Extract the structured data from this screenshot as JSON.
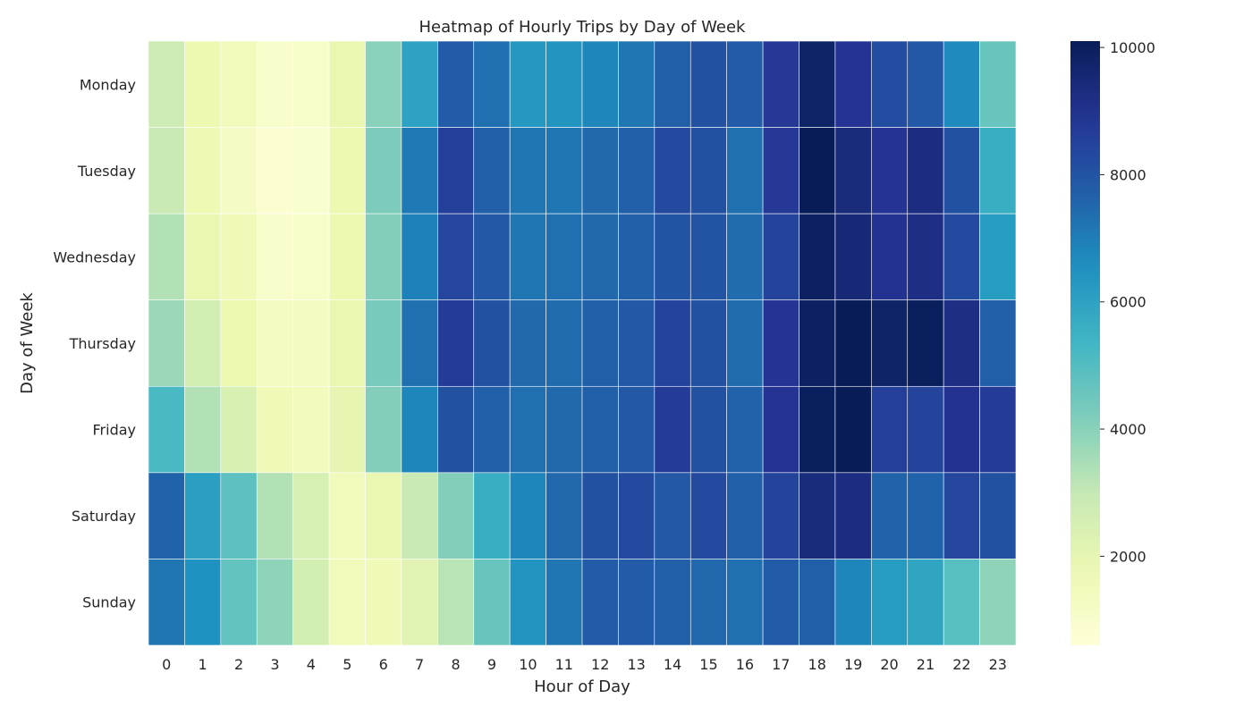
{
  "chart_data": {
    "type": "heatmap",
    "title": "Heatmap of Hourly Trips by Day of Week",
    "xlabel": "Hour of Day",
    "ylabel": "Day of Week",
    "x_categories": [
      "0",
      "1",
      "2",
      "3",
      "4",
      "5",
      "6",
      "7",
      "8",
      "9",
      "10",
      "11",
      "12",
      "13",
      "14",
      "15",
      "16",
      "17",
      "18",
      "19",
      "20",
      "21",
      "22",
      "23"
    ],
    "y_categories": [
      "Monday",
      "Tuesday",
      "Wednesday",
      "Thursday",
      "Friday",
      "Saturday",
      "Sunday"
    ],
    "values": [
      [
        2800,
        1800,
        1500,
        1000,
        1100,
        1900,
        4000,
        6000,
        7800,
        7300,
        6300,
        6400,
        6800,
        7200,
        7700,
        8100,
        7800,
        8800,
        9800,
        8900,
        8200,
        7900,
        6700,
        4600
      ],
      [
        2900,
        1700,
        1200,
        800,
        900,
        1800,
        4200,
        7100,
        8600,
        7700,
        7200,
        7200,
        7500,
        7700,
        8300,
        8100,
        7300,
        8800,
        10100,
        9400,
        8900,
        9300,
        8100,
        5600
      ],
      [
        3300,
        1900,
        1600,
        1000,
        1100,
        1800,
        4100,
        6900,
        8400,
        7900,
        7200,
        7300,
        7500,
        7700,
        8000,
        8000,
        7400,
        8500,
        9900,
        9500,
        9000,
        9200,
        8300,
        6200
      ],
      [
        3700,
        2600,
        1800,
        1300,
        1300,
        1900,
        4300,
        7300,
        8700,
        8100,
        7500,
        7400,
        7700,
        7900,
        8500,
        8100,
        7400,
        8900,
        9900,
        10100,
        9800,
        10000,
        9200,
        7700
      ],
      [
        5200,
        3300,
        2400,
        1600,
        1400,
        2000,
        4100,
        6800,
        8100,
        7700,
        7300,
        7500,
        7700,
        7900,
        8700,
        8100,
        7600,
        8900,
        10000,
        10100,
        8600,
        8500,
        9000,
        8700
      ],
      [
        7600,
        6100,
        4800,
        3300,
        2500,
        1500,
        1900,
        2900,
        4100,
        5600,
        6800,
        7500,
        8100,
        8300,
        7900,
        8300,
        7700,
        8500,
        9400,
        9300,
        7600,
        7600,
        8400,
        8100
      ],
      [
        7200,
        6500,
        4700,
        3900,
        2600,
        1500,
        1600,
        2200,
        3200,
        4600,
        6400,
        7200,
        7800,
        7800,
        7700,
        7500,
        7300,
        7800,
        7700,
        6800,
        6200,
        5900,
        4900,
        3900
      ]
    ],
    "vmin": 600,
    "vmax": 10100,
    "colormap": "YlGnBu",
    "colorbar_ticks": [
      2000,
      4000,
      6000,
      8000,
      10000
    ],
    "grid": false,
    "legend": "colorbar-right"
  }
}
